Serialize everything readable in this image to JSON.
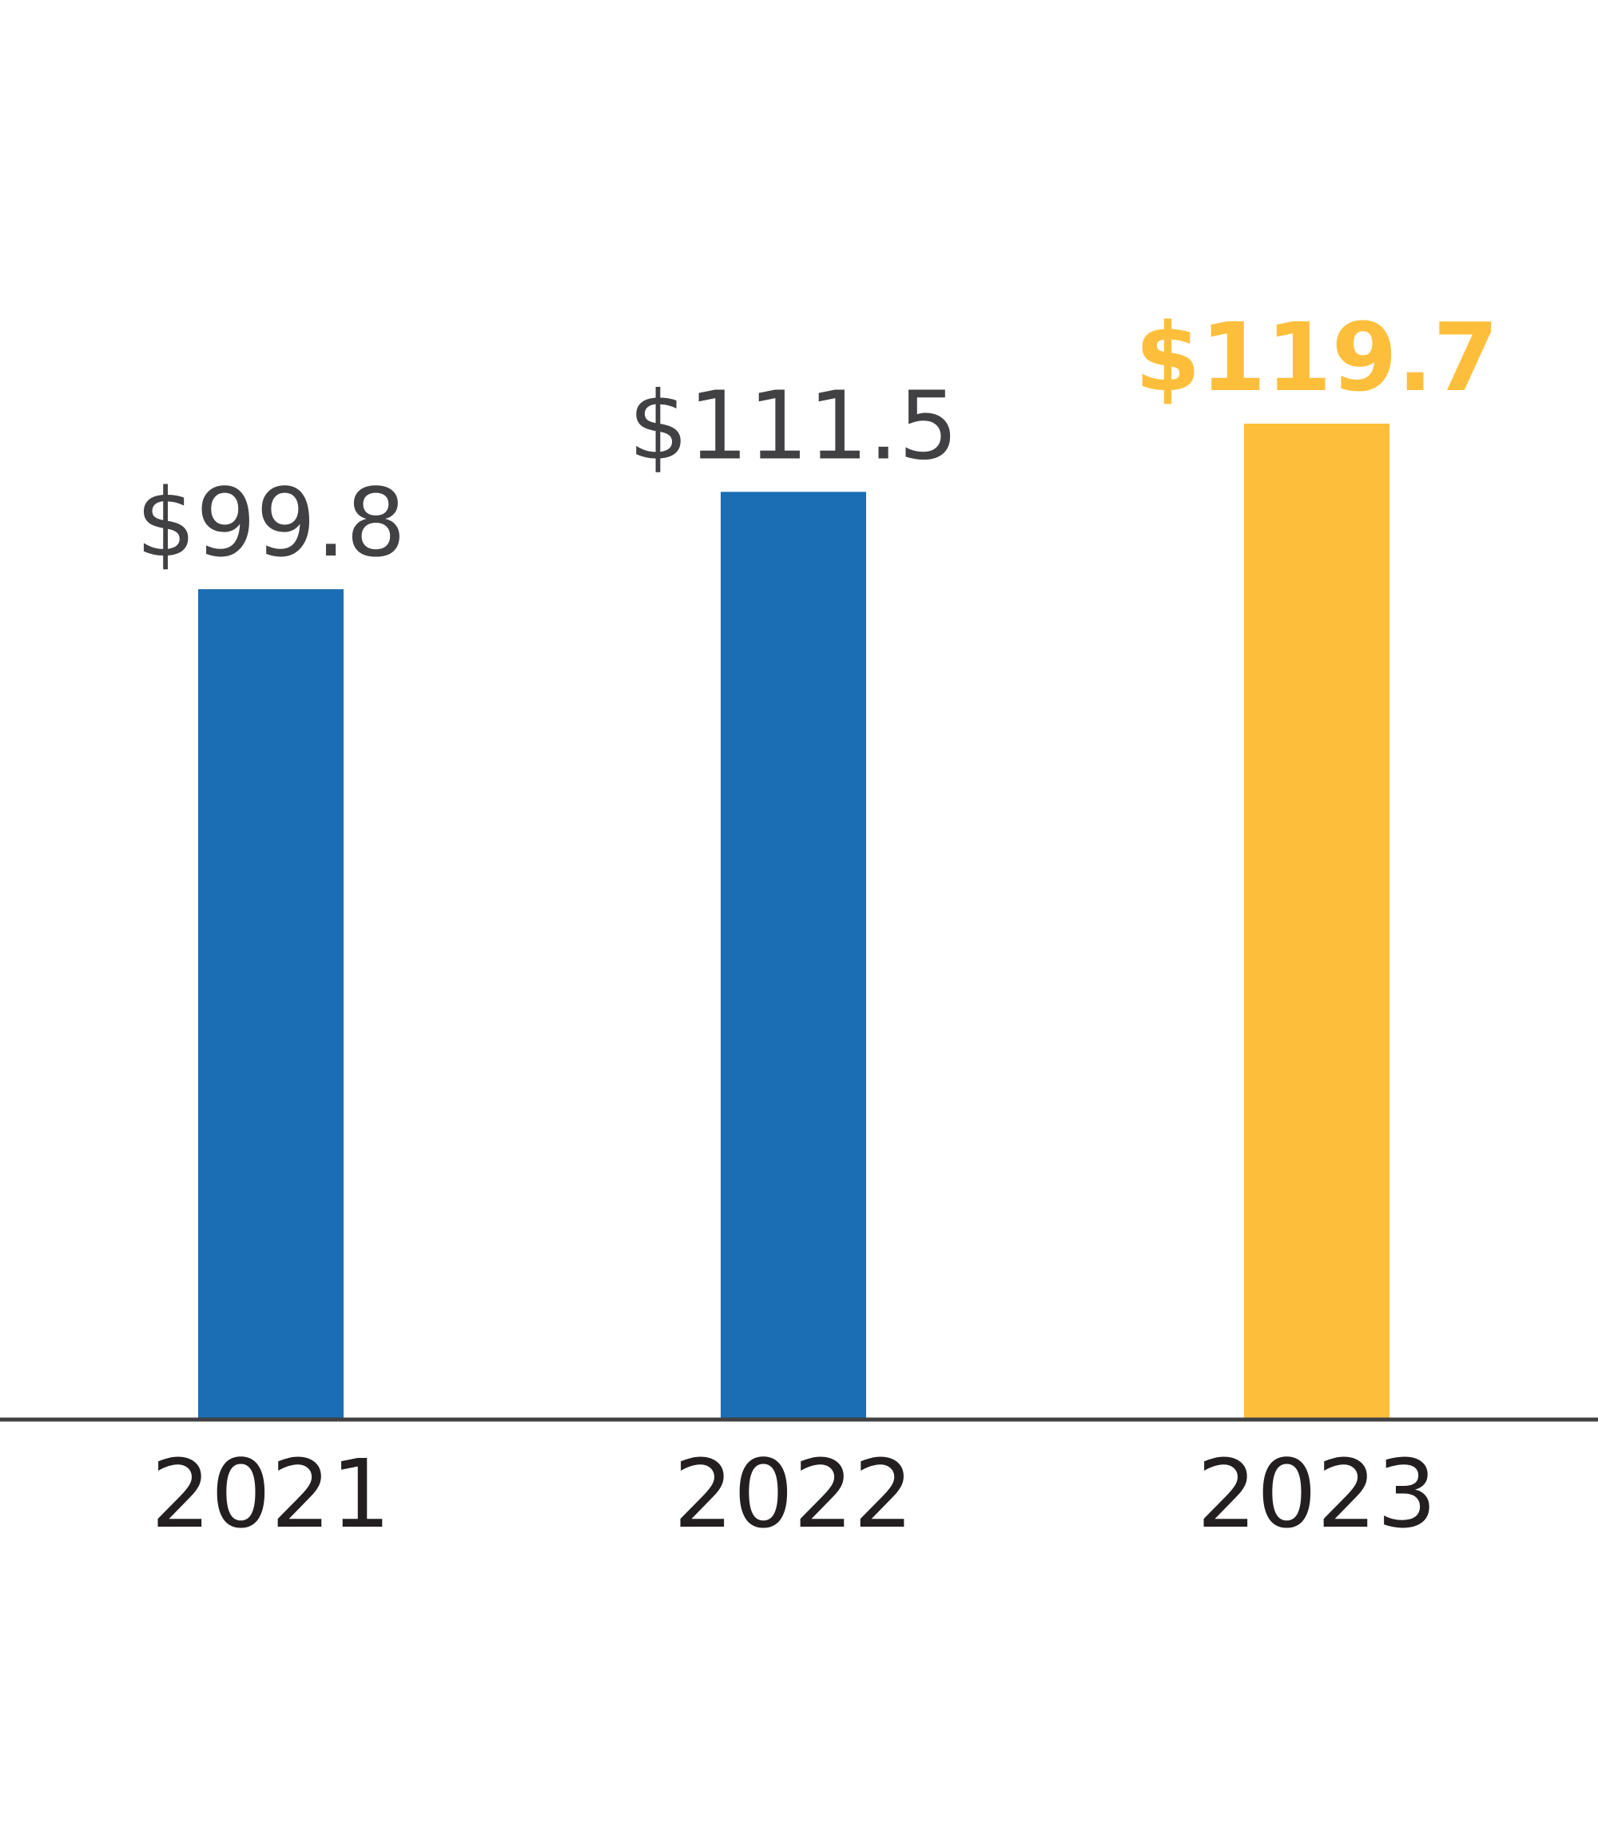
{
  "chart_data": {
    "type": "bar",
    "categories": [
      "2021",
      "2022",
      "2023"
    ],
    "values": [
      99.8,
      111.5,
      119.7
    ],
    "value_labels": [
      "$99.8",
      "$111.5",
      "$119.7"
    ],
    "highlight_index": 2,
    "ylim": [
      0,
      119.7
    ],
    "grid": false,
    "colors": {
      "bar": "#1b6db4",
      "highlight": "#fdbf3b",
      "label": "#414042",
      "axis": "#414042",
      "tick_label": "#231f20"
    }
  }
}
